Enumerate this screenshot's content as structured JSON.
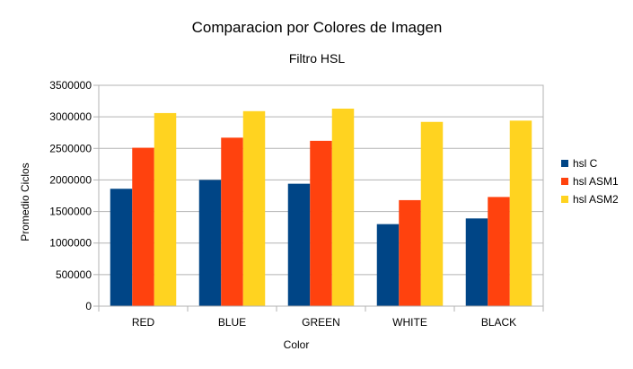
{
  "chart_data": {
    "type": "bar",
    "title": "Comparacion por Colores de Imagen",
    "subtitle": "Filtro HSL",
    "xlabel": "Color",
    "ylabel": "Promedio Ciclos",
    "categories": [
      "RED",
      "BLUE",
      "GREEN",
      "WHITE",
      "BLACK"
    ],
    "ylim": [
      0,
      3500000
    ],
    "yticks": [
      "0",
      "500000",
      "1000000",
      "1500000",
      "2000000",
      "2500000",
      "3000000",
      "3500000"
    ],
    "grid": true,
    "legend_position": "right",
    "series": [
      {
        "name": "hsl C",
        "color": "#004586",
        "values": [
          1860000,
          2000000,
          1940000,
          1300000,
          1390000
        ]
      },
      {
        "name": "hsl ASM1",
        "color": "#ff420e",
        "values": [
          2510000,
          2670000,
          2620000,
          1680000,
          1730000
        ]
      },
      {
        "name": "hsl ASM2",
        "color": "#ffd320",
        "values": [
          3060000,
          3090000,
          3130000,
          2920000,
          2940000
        ]
      }
    ]
  }
}
